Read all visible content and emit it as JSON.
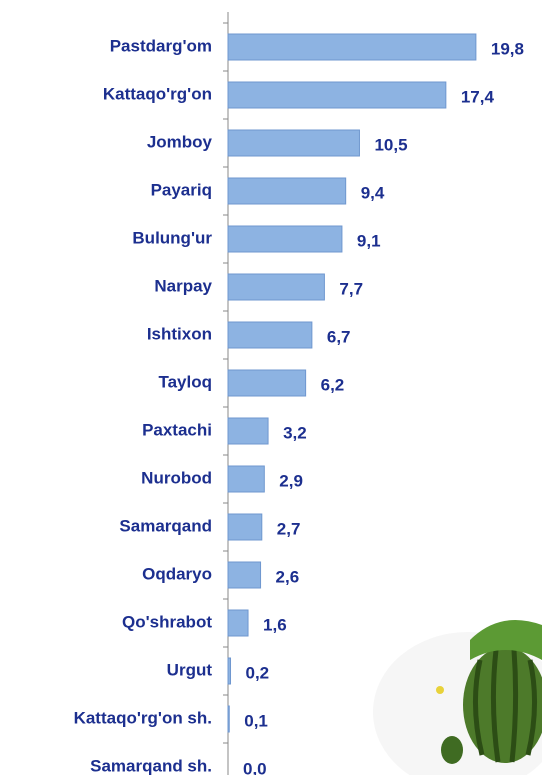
{
  "chart_data": {
    "type": "bar",
    "orientation": "horizontal",
    "categories": [
      "Pastdarg'om",
      "Kattaqo'rg'on",
      "Jomboy",
      "Payariq",
      "Bulung'ur",
      "Narpay",
      "Ishtixon",
      "Tayloq",
      "Paxtachi",
      "Nurobod",
      "Samarqand",
      "Oqdaryo",
      "Qo'shrabot",
      "Urgut",
      "Kattaqo'rg'on sh.",
      "Samarqand sh."
    ],
    "values": [
      19.8,
      17.4,
      10.5,
      9.4,
      9.1,
      7.7,
      6.7,
      6.2,
      3.2,
      2.9,
      2.7,
      2.6,
      1.6,
      0.2,
      0.1,
      0.0
    ],
    "value_labels": [
      "19,8",
      "17,4",
      "10,5",
      "9,4",
      "9,1",
      "7,7",
      "6,7",
      "6,2",
      "3,2",
      "2,9",
      "2,7",
      "2,6",
      "1,6",
      "0,2",
      "0,1",
      "0,0"
    ],
    "color": "#8db3e2",
    "xlim": [
      0,
      25
    ]
  }
}
